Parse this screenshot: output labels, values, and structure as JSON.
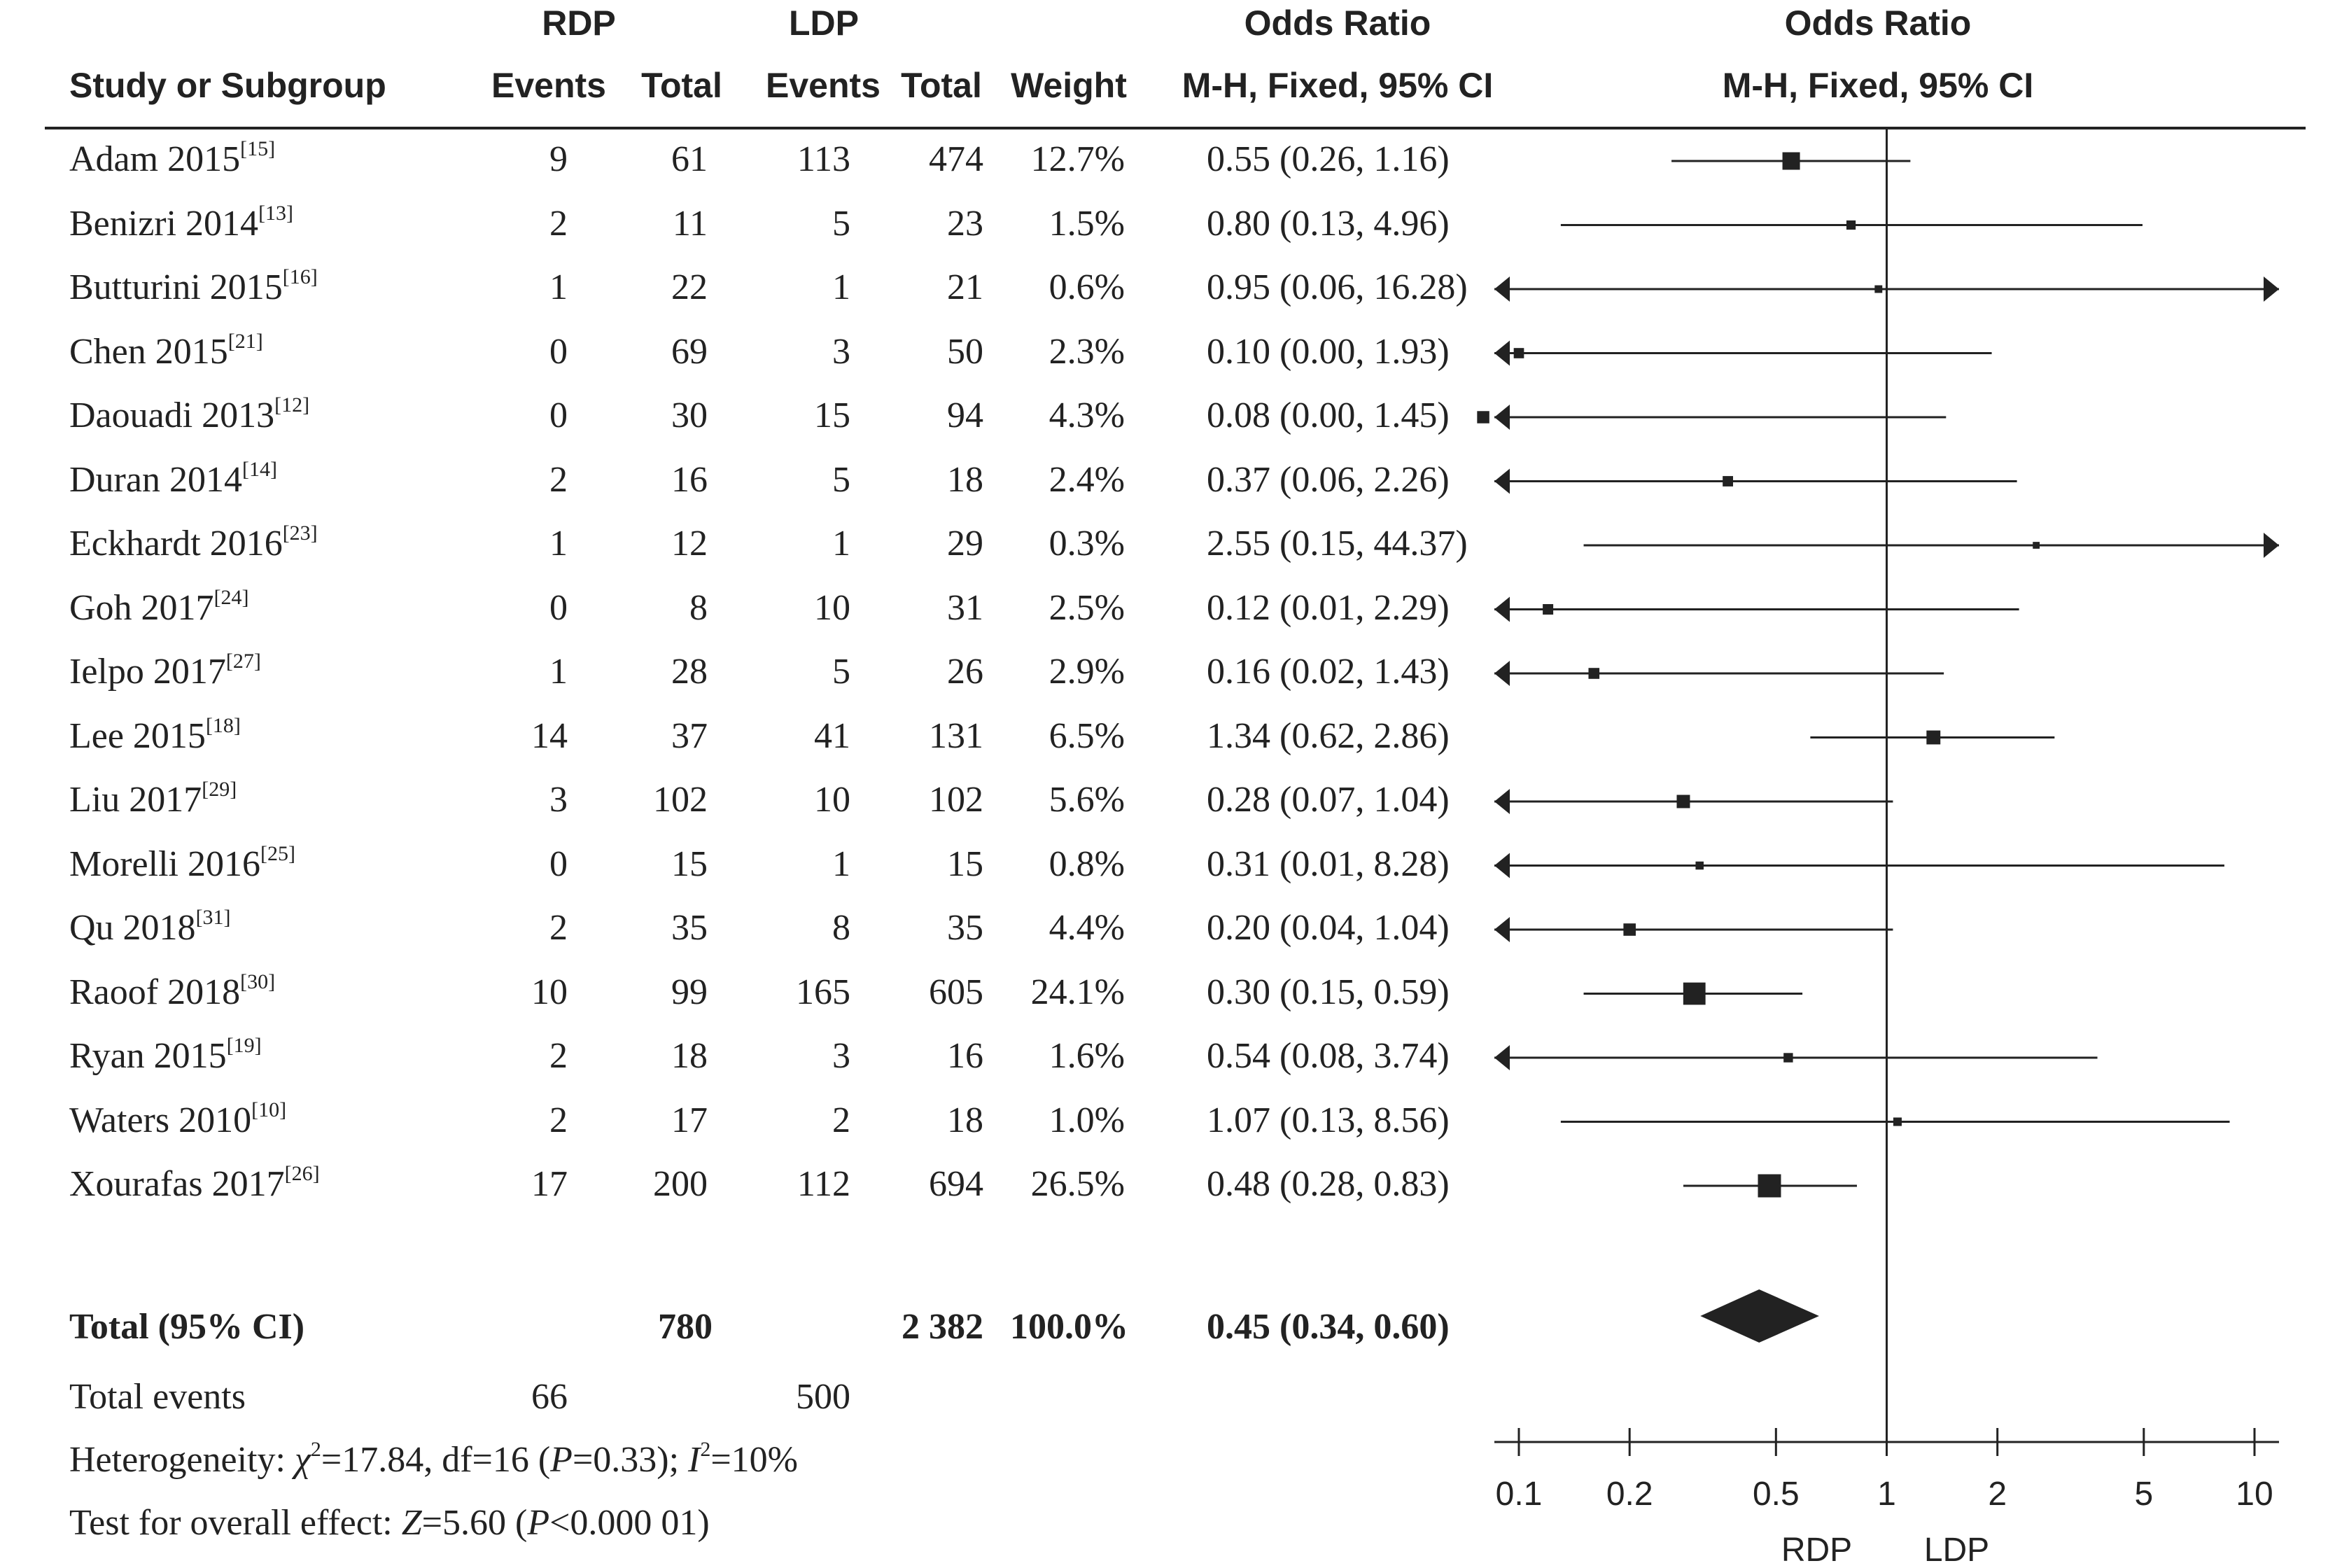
{
  "headers": {
    "group_rdp": "RDP",
    "group_ldp": "LDP",
    "study": "Study or Subgroup",
    "events": "Events",
    "total": "Total",
    "weight": "Weight",
    "or_title": "Odds Ratio",
    "or_method": "M-H, Fixed, 95% CI"
  },
  "studies": [
    {
      "name": "Adam 2015",
      "ref": "[15]",
      "rdp_events": "9",
      "rdp_total": "61",
      "ldp_events": "113",
      "ldp_total": "474",
      "weight": "12.7%",
      "ci_text": "0.55 (0.26, 1.16)"
    },
    {
      "name": "Benizri 2014",
      "ref": "[13]",
      "rdp_events": "2",
      "rdp_total": "11",
      "ldp_events": "5",
      "ldp_total": "23",
      "weight": "1.5%",
      "ci_text": "0.80 (0.13, 4.96)"
    },
    {
      "name": "Butturini 2015",
      "ref": "[16]",
      "rdp_events": "1",
      "rdp_total": "22",
      "ldp_events": "1",
      "ldp_total": "21",
      "weight": "0.6%",
      "ci_text": "0.95 (0.06, 16.28)"
    },
    {
      "name": "Chen 2015",
      "ref": "[21]",
      "rdp_events": "0",
      "rdp_total": "69",
      "ldp_events": "3",
      "ldp_total": "50",
      "weight": "2.3%",
      "ci_text": "0.10 (0.00, 1.93)"
    },
    {
      "name": "Daouadi 2013",
      "ref": "[12]",
      "rdp_events": "0",
      "rdp_total": "30",
      "ldp_events": "15",
      "ldp_total": "94",
      "weight": "4.3%",
      "ci_text": "0.08 (0.00, 1.45)"
    },
    {
      "name": "Duran 2014",
      "ref": "[14]",
      "rdp_events": "2",
      "rdp_total": "16",
      "ldp_events": "5",
      "ldp_total": "18",
      "weight": "2.4%",
      "ci_text": "0.37 (0.06, 2.26)"
    },
    {
      "name": "Eckhardt 2016",
      "ref": "[23]",
      "rdp_events": "1",
      "rdp_total": "12",
      "ldp_events": "1",
      "ldp_total": "29",
      "weight": "0.3%",
      "ci_text": "2.55 (0.15, 44.37)"
    },
    {
      "name": "Goh 2017",
      "ref": "[24]",
      "rdp_events": "0",
      "rdp_total": "8",
      "ldp_events": "10",
      "ldp_total": "31",
      "weight": "2.5%",
      "ci_text": "0.12 (0.01, 2.29)"
    },
    {
      "name": "Ielpo 2017",
      "ref": "[27]",
      "rdp_events": "1",
      "rdp_total": "28",
      "ldp_events": "5",
      "ldp_total": "26",
      "weight": "2.9%",
      "ci_text": "0.16 (0.02, 1.43)"
    },
    {
      "name": "Lee 2015",
      "ref": "[18]",
      "rdp_events": "14",
      "rdp_total": "37",
      "ldp_events": "41",
      "ldp_total": "131",
      "weight": "6.5%",
      "ci_text": "1.34 (0.62, 2.86)"
    },
    {
      "name": "Liu 2017",
      "ref": "[29]",
      "rdp_events": "3",
      "rdp_total": "102",
      "ldp_events": "10",
      "ldp_total": "102",
      "weight": "5.6%",
      "ci_text": "0.28 (0.07, 1.04)"
    },
    {
      "name": "Morelli 2016",
      "ref": "[25]",
      "rdp_events": "0",
      "rdp_total": "15",
      "ldp_events": "1",
      "ldp_total": "15",
      "weight": "0.8%",
      "ci_text": "0.31 (0.01, 8.28)"
    },
    {
      "name": "Qu 2018",
      "ref": "[31]",
      "rdp_events": "2",
      "rdp_total": "35",
      "ldp_events": "8",
      "ldp_total": "35",
      "weight": "4.4%",
      "ci_text": "0.20 (0.04, 1.04)"
    },
    {
      "name": "Raoof 2018",
      "ref": "[30]",
      "rdp_events": "10",
      "rdp_total": "99",
      "ldp_events": "165",
      "ldp_total": "605",
      "weight": "24.1%",
      "ci_text": "0.30 (0.15, 0.59)"
    },
    {
      "name": "Ryan 2015",
      "ref": "[19]",
      "rdp_events": "2",
      "rdp_total": "18",
      "ldp_events": "3",
      "ldp_total": "16",
      "weight": "1.6%",
      "ci_text": "0.54 (0.08, 3.74)"
    },
    {
      "name": "Waters 2010",
      "ref": "[10]",
      "rdp_events": "2",
      "rdp_total": "17",
      "ldp_events": "2",
      "ldp_total": "18",
      "weight": "1.0%",
      "ci_text": "1.07 (0.13, 8.56)"
    },
    {
      "name": "Xourafas 2017",
      "ref": "[26]",
      "rdp_events": "17",
      "rdp_total": "200",
      "ldp_events": "112",
      "ldp_total": "694",
      "weight": "26.5%",
      "ci_text": "0.48 (0.28, 0.83)"
    }
  ],
  "total": {
    "label": "Total (95% CI)",
    "rdp_total": "780",
    "ldp_total": "2 382",
    "weight": "100.0%",
    "ci_text": "0.45 (0.34, 0.60)"
  },
  "total_events": {
    "label": "Total events",
    "rdp": "66",
    "ldp": "500"
  },
  "heterogeneity": {
    "prefix": "Heterogeneity: ",
    "chi": "χ",
    "chi_sup": "2",
    "chi_rest": "=17.84, df=16 (",
    "p": "P",
    "p_rest": "=0.33); ",
    "i": "I",
    "i_sup": "2",
    "i_rest": "=10%"
  },
  "overall_effect": {
    "prefix": "Test for overall effect: ",
    "z": "Z",
    "z_rest": "=5.60 (",
    "p": "P",
    "p_rest": "<0.000 01)"
  },
  "chart_data": {
    "type": "forest",
    "scale": "log",
    "xlim": [
      0.1,
      10
    ],
    "null_line": 1,
    "ticks": [
      0.1,
      0.2,
      0.5,
      1,
      2,
      5,
      10
    ],
    "tick_labels": [
      "0.1",
      "0.2",
      "0.5",
      "1",
      "2",
      "5",
      "10"
    ],
    "favours_left": "RDP",
    "favours_right": "LDP",
    "studies": [
      {
        "or": 0.55,
        "lo": 0.26,
        "hi": 1.16,
        "weight": 12.7
      },
      {
        "or": 0.8,
        "lo": 0.13,
        "hi": 4.96,
        "weight": 1.5
      },
      {
        "or": 0.95,
        "lo": 0.06,
        "hi": 16.28,
        "weight": 0.6
      },
      {
        "or": 0.1,
        "lo": 0.0,
        "hi": 1.93,
        "weight": 2.3
      },
      {
        "or": 0.08,
        "lo": 0.0,
        "hi": 1.45,
        "weight": 4.3
      },
      {
        "or": 0.37,
        "lo": 0.06,
        "hi": 2.26,
        "weight": 2.4
      },
      {
        "or": 2.55,
        "lo": 0.15,
        "hi": 44.37,
        "weight": 0.3
      },
      {
        "or": 0.12,
        "lo": 0.01,
        "hi": 2.29,
        "weight": 2.5
      },
      {
        "or": 0.16,
        "lo": 0.02,
        "hi": 1.43,
        "weight": 2.9
      },
      {
        "or": 1.34,
        "lo": 0.62,
        "hi": 2.86,
        "weight": 6.5
      },
      {
        "or": 0.28,
        "lo": 0.07,
        "hi": 1.04,
        "weight": 5.6
      },
      {
        "or": 0.31,
        "lo": 0.01,
        "hi": 8.28,
        "weight": 0.8
      },
      {
        "or": 0.2,
        "lo": 0.04,
        "hi": 1.04,
        "weight": 4.4
      },
      {
        "or": 0.3,
        "lo": 0.15,
        "hi": 0.59,
        "weight": 24.1
      },
      {
        "or": 0.54,
        "lo": 0.08,
        "hi": 3.74,
        "weight": 1.6
      },
      {
        "or": 1.07,
        "lo": 0.13,
        "hi": 8.56,
        "weight": 1.0
      },
      {
        "or": 0.48,
        "lo": 0.28,
        "hi": 0.83,
        "weight": 26.5
      }
    ],
    "pooled": {
      "or": 0.45,
      "lo": 0.34,
      "hi": 0.6,
      "weight": 100.0
    }
  }
}
